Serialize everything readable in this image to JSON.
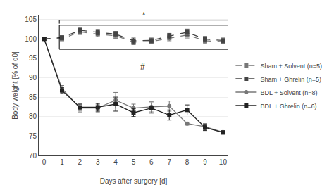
{
  "chart_data": {
    "type": "line",
    "xlabel": "Days after surgery [d]",
    "ylabel": "Body weight [% of d0]",
    "x": [
      0,
      1,
      2,
      3,
      4,
      5,
      6,
      7,
      8,
      9,
      10
    ],
    "series": [
      {
        "name": "Sham + Solvent (n=5)",
        "color": "#777777",
        "marker": "square",
        "line_style": "dash",
        "values": [
          100,
          100.0,
          101.8,
          101.2,
          100.8,
          99.2,
          99.3,
          100.2,
          101.0,
          99.5,
          99.3
        ],
        "errors": [
          0.3,
          0.5,
          0.7,
          0.7,
          0.7,
          0.7,
          0.6,
          0.7,
          0.8,
          0.7,
          0.6
        ]
      },
      {
        "name": "Sham + Ghrelin (n=5)",
        "color": "#444444",
        "marker": "square",
        "line_style": "dash",
        "values": [
          100,
          100.3,
          102.2,
          101.7,
          101.2,
          99.5,
          99.6,
          100.7,
          101.7,
          99.9,
          99.6
        ],
        "errors": [
          0.3,
          0.5,
          0.7,
          0.7,
          0.7,
          0.7,
          0.6,
          0.7,
          0.8,
          0.7,
          0.6
        ]
      },
      {
        "name": "BDL + Solvent (n=8)",
        "color": "#777777",
        "marker": "circle",
        "line_style": "solid",
        "values": [
          100,
          87.2,
          82.2,
          82.2,
          84.2,
          82.2,
          82.5,
          82.7,
          78.2,
          77.4,
          76.0
        ],
        "errors": [
          0.3,
          0.8,
          1.0,
          1.0,
          2.0,
          1.0,
          1.3,
          1.3,
          0.4,
          0.8,
          0.4
        ]
      },
      {
        "name": "BDL + Ghrelin (n=6)",
        "color": "#222222",
        "marker": "square",
        "line_style": "solid",
        "values": [
          100,
          86.7,
          82.4,
          82.4,
          83.2,
          81.0,
          82.2,
          80.4,
          81.7,
          77.2,
          75.9
        ],
        "errors": [
          0.3,
          0.8,
          0.8,
          1.0,
          1.8,
          1.0,
          1.3,
          1.3,
          1.3,
          0.8,
          0.4
        ]
      }
    ],
    "xlim": [
      -0.3,
      10.3
    ],
    "ylim": [
      70,
      106
    ],
    "xticks": [
      0,
      1,
      2,
      3,
      4,
      5,
      6,
      7,
      8,
      9,
      10
    ],
    "yticks": [
      70,
      75,
      80,
      85,
      90,
      95,
      100,
      105
    ],
    "grid": "y",
    "legend": "right",
    "inset": {
      "x": [
        0.85,
        10.3
      ],
      "y": [
        97.3,
        103.5
      ]
    },
    "bracket": {
      "x": [
        0.85,
        10.3
      ],
      "y": 104.8,
      "text": "*"
    },
    "annotations": [
      {
        "text": "#",
        "x": 5.5,
        "y": 94.5
      }
    ]
  }
}
